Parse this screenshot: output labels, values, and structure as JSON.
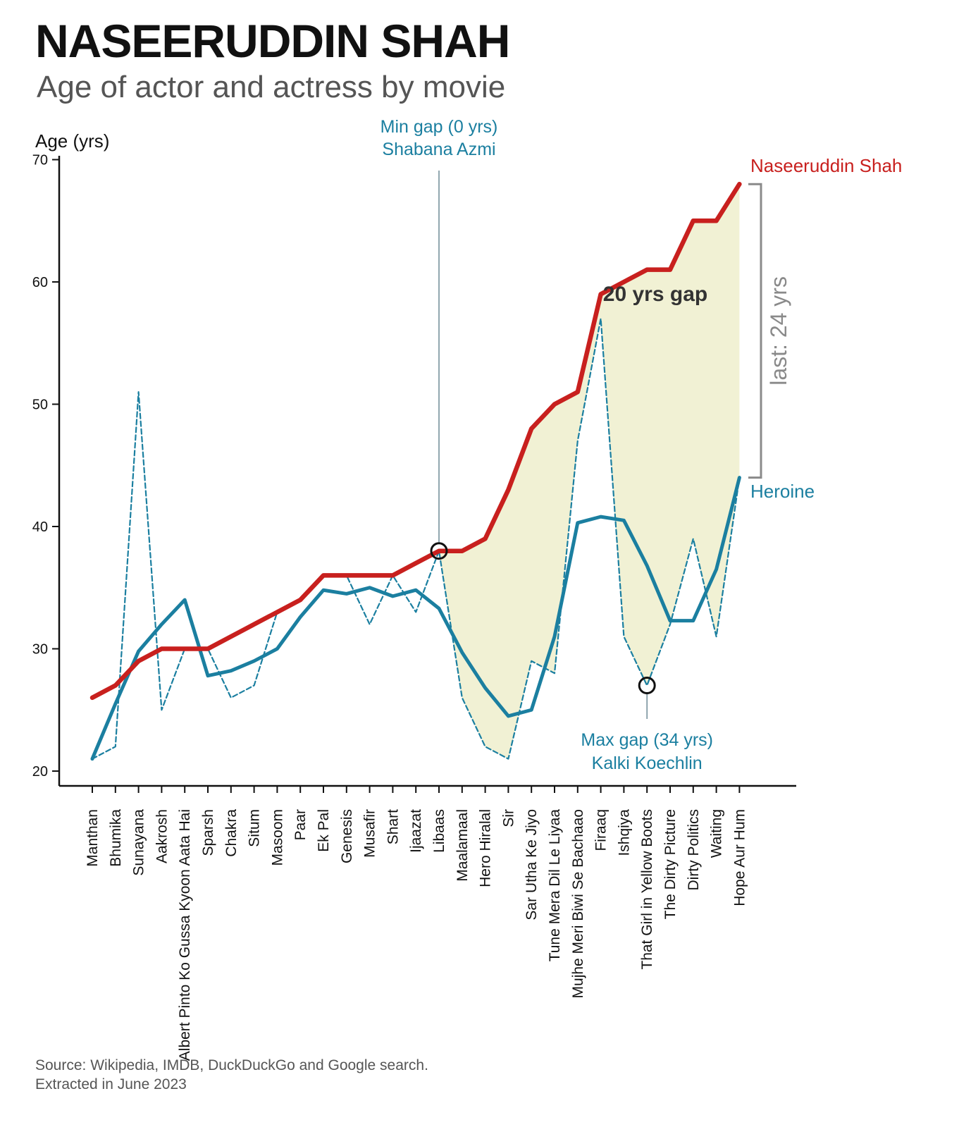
{
  "title": "NASEERUDDIN SHAH",
  "subtitle": "Age of actor and actress by movie",
  "source_line1": "Source: Wikipedia, IMDB, DuckDuckGo and Google search.",
  "source_line2": "Extracted in June 2023",
  "colors": {
    "actor": "#c8201e",
    "heroine": "#1b7fa0",
    "fill": "#eeeecc",
    "bracket": "#8a8a8a",
    "axis": "#111111"
  },
  "chart_data": {
    "type": "line",
    "ylabel": "Age (yrs)",
    "ylim": [
      19,
      70
    ],
    "yticks": [
      20,
      30,
      40,
      50,
      60,
      70
    ],
    "categories": [
      "Manthan",
      "Bhumika",
      "Sunayana",
      "Aakrosh",
      "Albert Pinto Ko Gussa Kyoon Aata Hai",
      "Sparsh",
      "Chakra",
      "Situm",
      "Masoom",
      "Paar",
      "Ek Pal",
      "Genesis",
      "Musafir",
      "Shart",
      "Ijaazat",
      "Libaas",
      "Maalamaal",
      "Hero Hiralal",
      "Sir",
      "Sar Utha Ke Jiyo",
      "Tune Mera Dil Le Liyaa",
      "Mujhe Meri Biwi Se Bachaao",
      "Firaaq",
      "Ishqiya",
      "That Girl in Yellow Boots",
      "The Dirty Picture",
      "Dirty Politics",
      "Waiting",
      "Hope Aur Hum"
    ],
    "series": [
      {
        "name": "Naseeruddin Shah",
        "values": [
          26,
          27,
          29,
          30,
          30,
          30,
          31,
          32,
          33,
          34,
          36,
          36,
          36,
          36,
          37,
          38,
          38,
          39,
          43,
          48,
          50,
          51,
          59,
          60,
          61,
          61,
          65,
          65,
          68
        ]
      },
      {
        "name": "Heroine",
        "values": [
          21,
          25.5,
          29.8,
          32,
          34,
          27.8,
          28.2,
          29,
          30,
          32.6,
          34.8,
          34.5,
          35,
          34.3,
          34.8,
          33.3,
          29.7,
          26.8,
          24.5,
          25,
          31,
          40.3,
          40.8,
          40.5,
          36.8,
          32.3,
          32.3,
          36.5,
          44
        ]
      },
      {
        "name": "heroine actual age",
        "values": [
          21,
          22,
          51,
          25,
          30,
          30,
          26,
          27,
          33,
          34,
          36,
          36,
          32,
          36,
          33,
          38,
          26,
          22,
          21,
          29,
          28,
          47,
          57,
          31,
          27,
          32,
          39,
          31,
          44
        ]
      }
    ],
    "annotations": {
      "min_gap": {
        "line1": "Min gap (0 yrs)",
        "line2": "Shabana Azmi",
        "index": 15,
        "value": 38
      },
      "max_gap": {
        "line1": "Max gap (34 yrs)",
        "line2": "Kalki Koechlin",
        "index": 24,
        "value": 27
      },
      "gap_label": "20 yrs gap",
      "last_label": "last: 24 yrs",
      "actor_label": "Naseeruddin Shah",
      "heroine_label": "Heroine"
    }
  }
}
